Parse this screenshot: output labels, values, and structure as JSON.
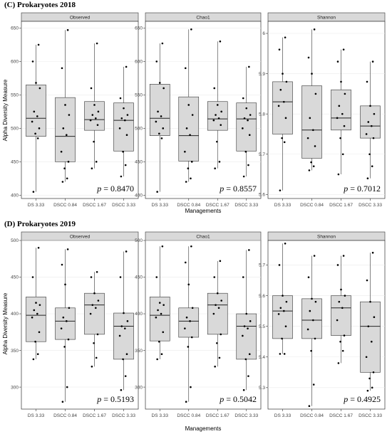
{
  "chart_data": [
    {
      "section_title": "(C) Prokaryotes 2018",
      "type": "box",
      "xlabel": "Managements",
      "ylabel": "Alpha Diversity Measure",
      "categories": [
        "DS 3.33",
        "DSCC 0.84",
        "DSCC 1.67",
        "DSCC 3.33"
      ],
      "panels": [
        {
          "name": "Observed",
          "ylim": [
            395,
            660
          ],
          "yticks": [
            400,
            450,
            500,
            550,
            600,
            650
          ],
          "p_value": "= 0.8470",
          "boxes": [
            {
              "min": 405,
              "q1": 488,
              "median": 515,
              "q3": 565,
              "max": 625
            },
            {
              "min": 420,
              "q1": 450,
              "median": 488,
              "q3": 546,
              "max": 647
            },
            {
              "min": 440,
              "q1": 497,
              "median": 513,
              "q3": 540,
              "max": 627
            },
            {
              "min": 428,
              "q1": 466,
              "median": 512,
              "q3": 538,
              "max": 592
            }
          ],
          "points": [
            [
              405,
              485,
              492,
              500,
              510,
              518,
              525,
              560,
              568,
              600,
              625
            ],
            [
              420,
              425,
              440,
              450,
              465,
              490,
              500,
              520,
              535,
              590,
              647
            ],
            [
              440,
              450,
              480,
              505,
              512,
              515,
              520,
              525,
              535,
              560,
              627
            ],
            [
              428,
              445,
              465,
              490,
              500,
              512,
              515,
              520,
              530,
              545,
              592
            ]
          ]
        },
        {
          "name": "Chao1",
          "ylim": [
            395,
            660
          ],
          "yticks": [
            400,
            450,
            500,
            550,
            600,
            650
          ],
          "p_value": "= 0.8557",
          "boxes": [
            {
              "min": 405,
              "q1": 489,
              "median": 515,
              "q3": 566,
              "max": 627
            },
            {
              "min": 420,
              "q1": 451,
              "median": 489,
              "q3": 547,
              "max": 648
            },
            {
              "min": 440,
              "q1": 497,
              "median": 514,
              "q3": 540,
              "max": 630
            },
            {
              "min": 428,
              "q1": 466,
              "median": 514,
              "q3": 538,
              "max": 592
            }
          ],
          "points": [
            [
              405,
              485,
              492,
              500,
              510,
              518,
              525,
              560,
              568,
              600,
              627
            ],
            [
              420,
              425,
              440,
              450,
              465,
              490,
              500,
              520,
              535,
              590,
              648
            ],
            [
              440,
              450,
              480,
              505,
              512,
              515,
              520,
              525,
              535,
              560,
              630
            ],
            [
              428,
              445,
              465,
              490,
              500,
              512,
              515,
              520,
              530,
              545,
              592
            ]
          ]
        },
        {
          "name": "Shannon",
          "ylim": [
            5.59,
            6.03
          ],
          "yticks": [
            5.6,
            5.7,
            5.8,
            5.9,
            6.0
          ],
          "p_value": "= 0.7012",
          "boxes": [
            {
              "min": 5.61,
              "q1": 5.75,
              "median": 5.83,
              "q3": 5.88,
              "max": 5.99
            },
            {
              "min": 5.66,
              "q1": 5.69,
              "median": 5.76,
              "q3": 5.87,
              "max": 6.01
            },
            {
              "min": 5.65,
              "q1": 5.76,
              "median": 5.79,
              "q3": 5.86,
              "max": 5.96
            },
            {
              "min": 5.64,
              "q1": 5.74,
              "median": 5.77,
              "q3": 5.82,
              "max": 5.93
            }
          ],
          "points": [
            [
              5.61,
              5.73,
              5.74,
              5.79,
              5.82,
              5.83,
              5.86,
              5.88,
              5.9,
              5.96,
              5.99
            ],
            [
              5.66,
              5.67,
              5.68,
              5.72,
              5.74,
              5.76,
              5.79,
              5.85,
              5.9,
              5.94,
              6.01
            ],
            [
              5.65,
              5.7,
              5.74,
              5.77,
              5.79,
              5.8,
              5.82,
              5.85,
              5.88,
              5.93,
              5.96
            ],
            [
              5.64,
              5.67,
              5.7,
              5.74,
              5.75,
              5.77,
              5.78,
              5.8,
              5.82,
              5.88,
              5.93
            ]
          ]
        }
      ]
    },
    {
      "section_title": "(D) Prokaryotes 2019",
      "type": "box",
      "xlabel": "Managements",
      "ylabel": "Alpha Diversity Measure",
      "categories": [
        "DS 3.33",
        "DSCC 0.84",
        "DSCC 1.67",
        "DSCC 3.33"
      ],
      "panels": [
        {
          "name": "Observed",
          "ylim": [
            270,
            500
          ],
          "yticks": [
            300,
            350,
            400,
            450,
            500
          ],
          "p_value": "= 0.5193",
          "boxes": [
            {
              "min": 338,
              "q1": 362,
              "median": 398,
              "q3": 423,
              "max": 490
            },
            {
              "min": 280,
              "q1": 365,
              "median": 390,
              "q3": 408,
              "max": 488
            },
            {
              "min": 328,
              "q1": 372,
              "median": 412,
              "q3": 428,
              "max": 457
            },
            {
              "min": 296,
              "q1": 338,
              "median": 383,
              "q3": 401,
              "max": 485
            }
          ],
          "points": [
            [
              338,
              345,
              362,
              375,
              395,
              400,
              405,
              412,
              415,
              450,
              490
            ],
            [
              280,
              300,
              355,
              365,
              380,
              390,
              395,
              408,
              440,
              467,
              488
            ],
            [
              328,
              340,
              360,
              372,
              400,
              408,
              412,
              418,
              428,
              450,
              457
            ],
            [
              296,
              315,
              338,
              345,
              370,
              380,
              383,
              390,
              401,
              450,
              485
            ]
          ]
        },
        {
          "name": "Chao1",
          "ylim": [
            270,
            500
          ],
          "yticks": [
            300,
            350,
            400,
            450,
            500
          ],
          "p_value": "= 0.5042",
          "boxes": [
            {
              "min": 338,
              "q1": 363,
              "median": 398,
              "q3": 423,
              "max": 492
            },
            {
              "min": 280,
              "q1": 368,
              "median": 390,
              "q3": 408,
              "max": 492
            },
            {
              "min": 328,
              "q1": 372,
              "median": 412,
              "q3": 428,
              "max": 472
            },
            {
              "min": 296,
              "q1": 338,
              "median": 383,
              "q3": 400,
              "max": 487
            }
          ],
          "points": [
            [
              338,
              345,
              362,
              375,
              395,
              400,
              405,
              412,
              415,
              450,
              492
            ],
            [
              280,
              300,
              355,
              368,
              380,
              390,
              395,
              408,
              440,
              470,
              492
            ],
            [
              328,
              340,
              360,
              372,
              400,
              408,
              412,
              418,
              428,
              450,
              472
            ],
            [
              296,
              315,
              338,
              345,
              370,
              380,
              383,
              390,
              400,
              450,
              487
            ]
          ]
        },
        {
          "name": "Shannon",
          "ylim": [
            5.23,
            5.78
          ],
          "yticks": [
            5.3,
            5.4,
            5.5,
            5.6,
            5.7
          ],
          "p_value": "= 0.4925",
          "boxes": [
            {
              "min": 5.41,
              "q1": 5.46,
              "median": 5.55,
              "q3": 5.6,
              "max": 5.77
            },
            {
              "min": 5.24,
              "q1": 5.46,
              "median": 5.52,
              "q3": 5.59,
              "max": 5.73
            },
            {
              "min": 5.38,
              "q1": 5.47,
              "median": 5.56,
              "q3": 5.6,
              "max": 5.73
            },
            {
              "min": 5.29,
              "q1": 5.35,
              "median": 5.5,
              "q3": 5.58,
              "max": 5.74
            }
          ],
          "points": [
            [
              5.41,
              5.41,
              5.46,
              5.5,
              5.54,
              5.55,
              5.56,
              5.58,
              5.6,
              5.7,
              5.77
            ],
            [
              5.24,
              5.31,
              5.42,
              5.46,
              5.49,
              5.52,
              5.55,
              5.58,
              5.59,
              5.66,
              5.73
            ],
            [
              5.38,
              5.42,
              5.45,
              5.47,
              5.52,
              5.56,
              5.58,
              5.6,
              5.62,
              5.7,
              5.73
            ],
            [
              5.29,
              5.3,
              5.33,
              5.35,
              5.4,
              5.45,
              5.5,
              5.53,
              5.58,
              5.65,
              5.74
            ]
          ]
        }
      ]
    }
  ]
}
